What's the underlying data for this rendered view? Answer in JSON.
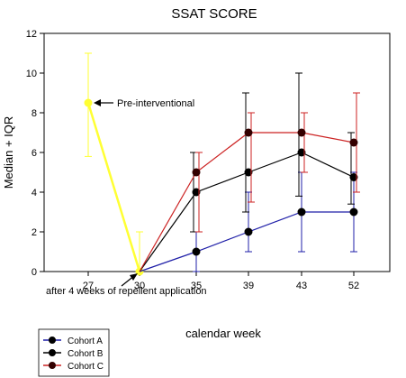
{
  "chart_data": {
    "type": "line",
    "title": "SSAT SCORE",
    "xlabel": "calendar week",
    "ylabel": "Median + IQR",
    "categories": [
      "27",
      "30",
      "35",
      "39",
      "43",
      "52"
    ],
    "ylim": [
      0,
      12
    ],
    "yticks": [
      0,
      2,
      4,
      6,
      8,
      10,
      12
    ],
    "grid": false,
    "legend_position": "bottom-left, below plot",
    "series": [
      {
        "name": "Cohort A",
        "color": "#1f1fa8",
        "marker_fill": "#000000",
        "points": [
          {
            "cat": 1,
            "median": 0,
            "low": 0,
            "high": 0
          },
          {
            "cat": 2,
            "median": 1,
            "low": 0,
            "high": 2
          },
          {
            "cat": 3,
            "median": 2,
            "low": 1,
            "high": 4
          },
          {
            "cat": 4,
            "median": 3,
            "low": 1,
            "high": 5
          },
          {
            "cat": 5,
            "median": 3,
            "low": 1,
            "high": 5
          }
        ]
      },
      {
        "name": "Cohort B",
        "color": "#000000",
        "marker_fill": "#000000",
        "points": [
          {
            "cat": 1,
            "median": 0,
            "low": 0,
            "high": 0
          },
          {
            "cat": 2,
            "median": 4,
            "low": 2,
            "high": 6
          },
          {
            "cat": 3,
            "median": 5,
            "low": 3,
            "high": 9
          },
          {
            "cat": 4,
            "median": 6,
            "low": 3.8,
            "high": 10
          },
          {
            "cat": 5,
            "median": 4.75,
            "low": 3.4,
            "high": 7
          }
        ]
      },
      {
        "name": "Cohort C",
        "color": "#cc2222",
        "marker_fill": "#330000",
        "points": [
          {
            "cat": 1,
            "median": 0,
            "low": 0,
            "high": 0
          },
          {
            "cat": 2,
            "median": 5,
            "low": 2,
            "high": 6
          },
          {
            "cat": 3,
            "median": 7,
            "low": 3.5,
            "high": 8
          },
          {
            "cat": 4,
            "median": 7,
            "low": 5,
            "high": 8
          },
          {
            "cat": 5,
            "median": 6.5,
            "low": 4,
            "high": 9
          }
        ]
      }
    ],
    "pre_interventional": {
      "color": "#ffff33",
      "points": [
        {
          "cat": 0,
          "median": 8.5,
          "low": 5.8,
          "high": 11
        },
        {
          "cat": 1,
          "median": 0,
          "low": 0,
          "high": 2
        }
      ]
    },
    "annotations": [
      {
        "text": "Pre-interventional",
        "target_cat": 0,
        "target_value": 8.5
      },
      {
        "text": "after 4 weeks of repellent application",
        "target_cat": 1,
        "target_value": 0
      }
    ]
  }
}
